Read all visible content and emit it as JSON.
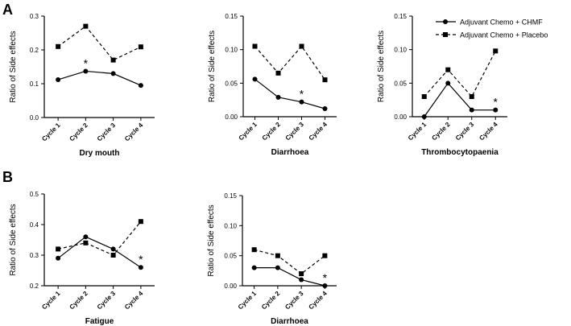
{
  "panel_labels": [
    "A",
    "B"
  ],
  "legend": {
    "entries": [
      "Adjuvant Chemo + CHMF",
      "Adjuvant Chemo + Placebo"
    ],
    "placement": "top-right"
  },
  "colors": {
    "ink": "#000000",
    "background": "#ffffff"
  },
  "chart_data": [
    {
      "type": "line",
      "panel": "A",
      "title": "",
      "xlabel": "Dry mouth",
      "ylabel": "Ratio of Side effects",
      "categories": [
        "Cycle 1",
        "Cycle 2",
        "Cycle 3",
        "Cycle 4"
      ],
      "ylim": [
        0.0,
        0.3
      ],
      "yticks": [
        0.0,
        0.1,
        0.2,
        0.3
      ],
      "ytick_labels": [
        "0.0",
        "0.1",
        "0.2",
        "0.3"
      ],
      "series": [
        {
          "name": "Adjuvant Chemo + CHMF",
          "marker": "circle",
          "line": "solid",
          "values": [
            0.112,
            0.137,
            0.13,
            0.095
          ]
        },
        {
          "name": "Adjuvant Chemo + Placebo",
          "marker": "square",
          "line": "dashed",
          "values": [
            0.21,
            0.27,
            0.17,
            0.209
          ]
        }
      ],
      "annotations": [
        {
          "text": "*",
          "category": "Cycle 2",
          "value": 0.137
        }
      ]
    },
    {
      "type": "line",
      "panel": "A",
      "title": "",
      "xlabel": "Diarrhoea",
      "ylabel": "Ratio of Side effects",
      "categories": [
        "Cycle 1",
        "Cycle 2",
        "Cycle 3",
        "Cycle 4"
      ],
      "ylim": [
        0.0,
        0.15
      ],
      "yticks": [
        0.0,
        0.05,
        0.1,
        0.15
      ],
      "ytick_labels": [
        "0.00",
        "0.05",
        "0.10",
        "0.15"
      ],
      "series": [
        {
          "name": "Adjuvant Chemo + CHMF",
          "marker": "circle",
          "line": "solid",
          "values": [
            0.056,
            0.029,
            0.022,
            0.012
          ]
        },
        {
          "name": "Adjuvant Chemo + Placebo",
          "marker": "square",
          "line": "dashed",
          "values": [
            0.105,
            0.065,
            0.105,
            0.055
          ]
        }
      ],
      "annotations": [
        {
          "text": "*",
          "category": "Cycle 3",
          "value": 0.022
        }
      ]
    },
    {
      "type": "line",
      "panel": "A",
      "title": "",
      "xlabel": "Thrombocytopaenia",
      "ylabel": "Ratio of Side effects",
      "categories": [
        "Cycle 1",
        "Cycle 2",
        "Cycle 3",
        "Cycle 4"
      ],
      "ylim": [
        0.0,
        0.15
      ],
      "yticks": [
        0.0,
        0.05,
        0.1,
        0.15
      ],
      "ytick_labels": [
        "0.00",
        "0.05",
        "0.10",
        "0.15"
      ],
      "series": [
        {
          "name": "Adjuvant Chemo + CHMF",
          "marker": "circle",
          "line": "solid",
          "values": [
            0.0,
            0.05,
            0.01,
            0.01
          ]
        },
        {
          "name": "Adjuvant Chemo + Placebo",
          "marker": "square",
          "line": "dashed",
          "values": [
            0.03,
            0.07,
            0.03,
            0.098
          ]
        }
      ],
      "annotations": [
        {
          "text": "*",
          "category": "Cycle 4",
          "value": 0.01
        }
      ]
    },
    {
      "type": "line",
      "panel": "B",
      "title": "",
      "xlabel": "Fatigue",
      "ylabel": "Ratio of Side effects",
      "categories": [
        "Cycle 1",
        "Cycle 2",
        "Cycle 3",
        "Cycle 4"
      ],
      "ylim": [
        0.2,
        0.5
      ],
      "yticks": [
        0.2,
        0.3,
        0.4,
        0.5
      ],
      "ytick_labels": [
        "0.2",
        "0.3",
        "0.4",
        "0.5"
      ],
      "series": [
        {
          "name": "Adjuvant Chemo + CHMF",
          "marker": "circle",
          "line": "solid",
          "values": [
            0.29,
            0.36,
            0.32,
            0.26
          ]
        },
        {
          "name": "Adjuvant Chemo + Placebo",
          "marker": "square",
          "line": "dashed",
          "values": [
            0.32,
            0.34,
            0.3,
            0.41
          ]
        }
      ],
      "annotations": [
        {
          "text": "*",
          "category": "Cycle 4",
          "value": 0.26
        }
      ]
    },
    {
      "type": "line",
      "panel": "B",
      "title": "",
      "xlabel": "Diarrhoea",
      "ylabel": "Ratio of Side effects",
      "categories": [
        "Cycle 1",
        "Cycle 2",
        "Cycle 3",
        "Cycle 4"
      ],
      "ylim": [
        0.0,
        0.15
      ],
      "yticks": [
        0.0,
        0.05,
        0.1,
        0.15
      ],
      "ytick_labels": [
        "0.00",
        "0.05",
        "0.10",
        "0.15"
      ],
      "series": [
        {
          "name": "Adjuvant Chemo + CHMF",
          "marker": "circle",
          "line": "solid",
          "values": [
            0.03,
            0.03,
            0.01,
            0.0
          ]
        },
        {
          "name": "Adjuvant Chemo + Placebo",
          "marker": "square",
          "line": "dashed",
          "values": [
            0.06,
            0.05,
            0.02,
            0.05
          ]
        }
      ],
      "annotations": [
        {
          "text": "*",
          "category": "Cycle 4",
          "value": 0.0
        }
      ]
    }
  ]
}
